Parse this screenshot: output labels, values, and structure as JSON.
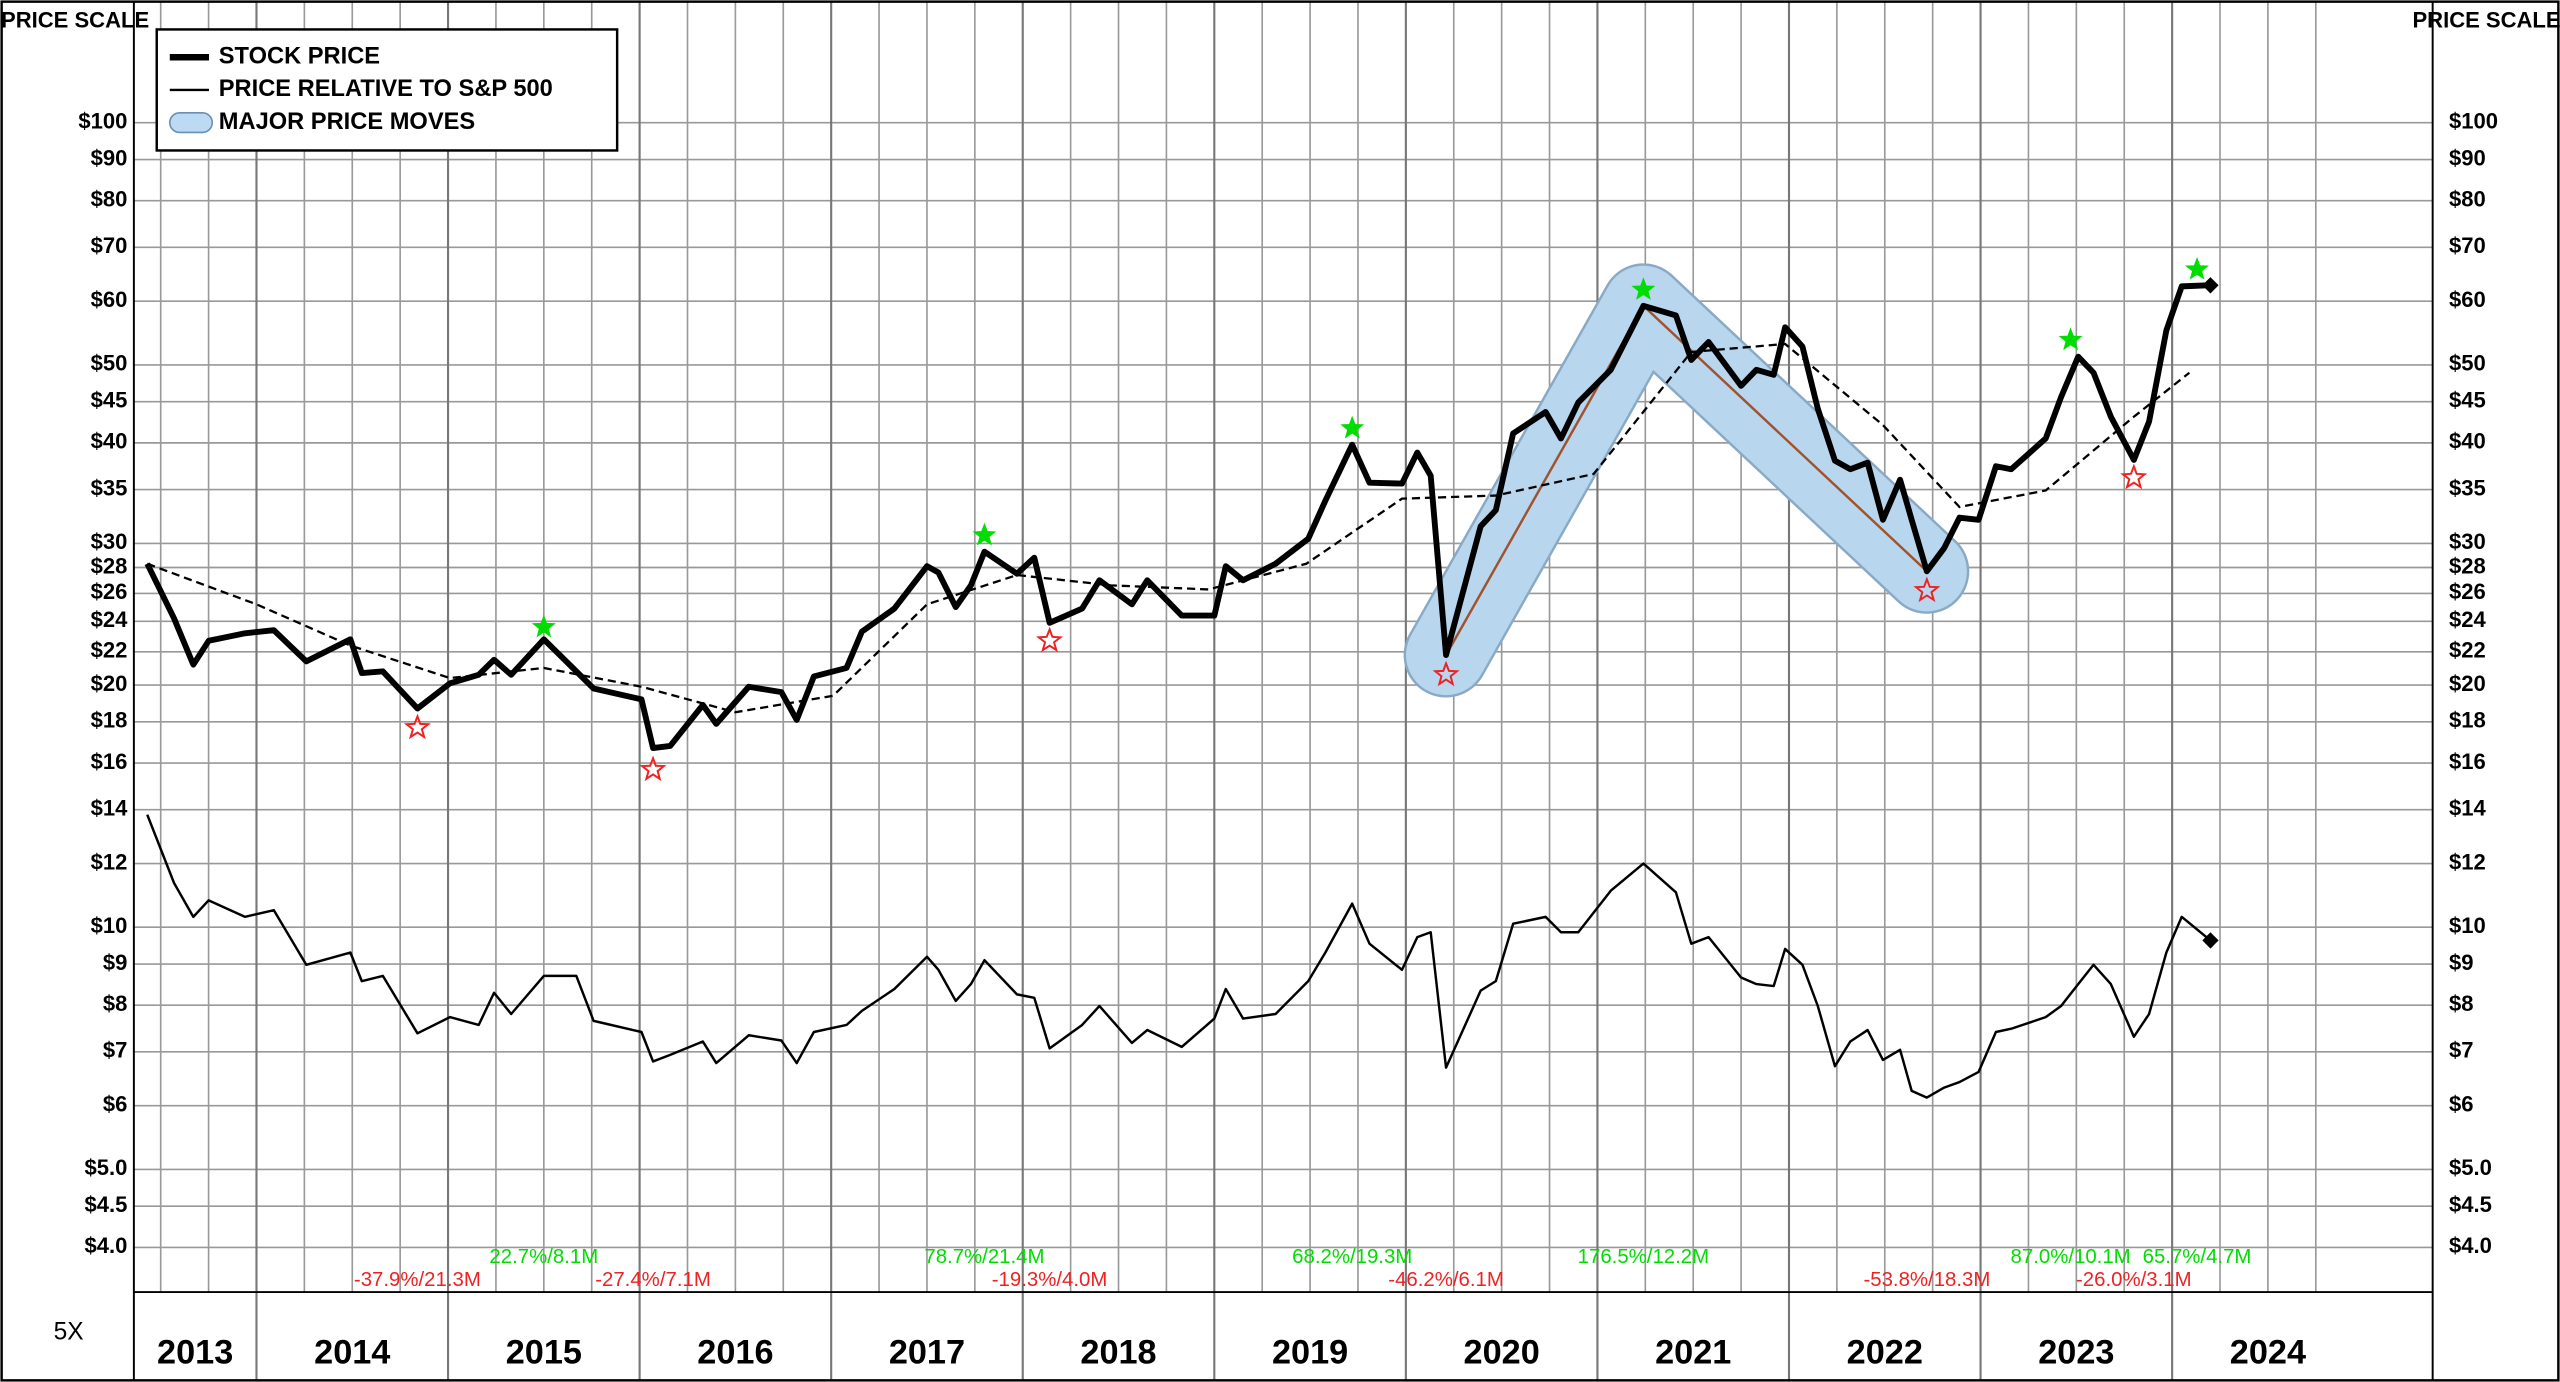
{
  "chart_data": {
    "type": "line",
    "axis_title": "PRICE SCALE",
    "multiplier_label": "5X",
    "log_scale": true,
    "grid": true,
    "legend_position": "upper left",
    "ylim": [
      3.52,
      138.8
    ],
    "yticks": [
      {
        "value": 100,
        "label": "$100"
      },
      {
        "value": 90,
        "label": "$90"
      },
      {
        "value": 80,
        "label": "$80"
      },
      {
        "value": 70,
        "label": "$70"
      },
      {
        "value": 60,
        "label": "$60"
      },
      {
        "value": 50,
        "label": "$50"
      },
      {
        "value": 45,
        "label": "$45"
      },
      {
        "value": 40,
        "label": "$40"
      },
      {
        "value": 35,
        "label": "$35"
      },
      {
        "value": 30,
        "label": "$30"
      },
      {
        "value": 28,
        "label": "$28"
      },
      {
        "value": 26,
        "label": "$26"
      },
      {
        "value": 24,
        "label": "$24"
      },
      {
        "value": 22,
        "label": "$22"
      },
      {
        "value": 20,
        "label": "$20"
      },
      {
        "value": 18,
        "label": "$18"
      },
      {
        "value": 16,
        "label": "$16"
      },
      {
        "value": 14,
        "label": "$14"
      },
      {
        "value": 12,
        "label": "$12"
      },
      {
        "value": 10,
        "label": "$10"
      },
      {
        "value": 9,
        "label": "$9"
      },
      {
        "value": 8,
        "label": "$8"
      },
      {
        "value": 7,
        "label": "$7"
      },
      {
        "value": 6,
        "label": "$6"
      },
      {
        "value": 5,
        "label": "$5.0"
      },
      {
        "value": 4.5,
        "label": "$4.5"
      },
      {
        "value": 4,
        "label": "$4.0"
      }
    ],
    "xlim": [
      2013.36,
      2025.36
    ],
    "xticks": [
      2013,
      2014,
      2015,
      2016,
      2017,
      2018,
      2019,
      2020,
      2021,
      2022,
      2023,
      2024
    ],
    "series": [
      {
        "name": "STOCK PRICE",
        "color": "#000000",
        "x": [
          2013.43,
          2013.57,
          2013.67,
          2013.75,
          2013.94,
          2014.09,
          2014.26,
          2014.49,
          2014.55,
          2014.66,
          2014.84,
          2015.01,
          2015.16,
          2015.24,
          2015.33,
          2015.5,
          2015.67,
          2015.76,
          2016.01,
          2016.07,
          2016.16,
          2016.33,
          2016.4,
          2016.57,
          2016.74,
          2016.82,
          2016.91,
          2017.08,
          2017.16,
          2017.33,
          2017.5,
          2017.56,
          2017.65,
          2017.73,
          2017.8,
          2017.97,
          2018.06,
          2018.14,
          2018.31,
          2018.4,
          2018.57,
          2018.65,
          2018.83,
          2019.0,
          2019.06,
          2019.15,
          2019.32,
          2019.49,
          2019.58,
          2019.72,
          2019.81,
          2019.98,
          2020.06,
          2020.13,
          2020.21,
          2020.39,
          2020.47,
          2020.56,
          2020.73,
          2020.81,
          2020.9,
          2021.07,
          2021.24,
          2021.41,
          2021.49,
          2021.58,
          2021.75,
          2021.83,
          2021.92,
          2021.98,
          2022.07,
          2022.15,
          2022.24,
          2022.32,
          2022.41,
          2022.49,
          2022.58,
          2022.64,
          2022.72,
          2022.81,
          2022.89,
          2022.99,
          2023.08,
          2023.16,
          2023.34,
          2023.42,
          2023.51,
          2023.59,
          2023.68,
          2023.8,
          2023.88,
          2023.97,
          2024.05,
          2024.2
        ],
        "values": [
          28.3,
          24.2,
          21.2,
          22.7,
          23.2,
          23.4,
          21.4,
          22.8,
          20.7,
          20.8,
          18.7,
          20.1,
          20.6,
          21.5,
          20.6,
          22.8,
          20.8,
          19.8,
          19.2,
          16.7,
          16.8,
          18.9,
          17.9,
          19.9,
          19.6,
          18.1,
          20.5,
          21.0,
          23.3,
          24.9,
          28.1,
          27.6,
          25.0,
          26.6,
          29.3,
          27.5,
          28.8,
          23.9,
          24.9,
          27.0,
          25.2,
          27.0,
          24.4,
          24.4,
          28.1,
          27.0,
          28.3,
          30.4,
          33.9,
          39.8,
          35.7,
          35.6,
          38.9,
          36.4,
          21.8,
          31.5,
          33.0,
          41.1,
          43.7,
          40.5,
          44.9,
          49.3,
          59.2,
          57.6,
          50.7,
          53.4,
          47.1,
          49.3,
          48.6,
          55.7,
          52.7,
          44.1,
          38.0,
          37.1,
          37.8,
          32.1,
          36.0,
          32.1,
          27.7,
          29.6,
          32.3,
          32.1,
          37.4,
          37.1,
          40.5,
          45.6,
          51.2,
          48.9,
          43.1,
          38.1,
          42.5,
          55.2,
          62.6,
          62.8
        ]
      },
      {
        "name": "PRICE RELATIVE TO S&P 500",
        "color": "#000000",
        "x": [
          2013.43,
          2013.57,
          2013.67,
          2013.75,
          2013.94,
          2014.09,
          2014.26,
          2014.49,
          2014.55,
          2014.66,
          2014.84,
          2015.01,
          2015.16,
          2015.24,
          2015.33,
          2015.5,
          2015.67,
          2015.76,
          2016.01,
          2016.07,
          2016.16,
          2016.33,
          2016.4,
          2016.57,
          2016.74,
          2016.82,
          2016.91,
          2017.08,
          2017.16,
          2017.33,
          2017.5,
          2017.56,
          2017.65,
          2017.73,
          2017.8,
          2017.97,
          2018.06,
          2018.14,
          2018.31,
          2018.4,
          2018.57,
          2018.65,
          2018.83,
          2019.0,
          2019.06,
          2019.15,
          2019.32,
          2019.49,
          2019.58,
          2019.72,
          2019.81,
          2019.98,
          2020.06,
          2020.13,
          2020.21,
          2020.39,
          2020.47,
          2020.56,
          2020.73,
          2020.81,
          2020.9,
          2021.07,
          2021.24,
          2021.41,
          2021.49,
          2021.58,
          2021.75,
          2021.83,
          2021.92,
          2021.98,
          2022.07,
          2022.15,
          2022.24,
          2022.32,
          2022.41,
          2022.49,
          2022.58,
          2022.64,
          2022.72,
          2022.81,
          2022.89,
          2022.99,
          2023.08,
          2023.16,
          2023.34,
          2023.42,
          2023.51,
          2023.59,
          2023.68,
          2023.8,
          2023.88,
          2023.97,
          2024.05,
          2024.2
        ],
        "values": [
          13.8,
          11.35,
          10.3,
          10.8,
          10.3,
          10.5,
          8.98,
          9.3,
          8.57,
          8.7,
          7.38,
          7.73,
          7.56,
          8.29,
          7.8,
          8.7,
          8.7,
          7.65,
          7.41,
          6.81,
          6.94,
          7.21,
          6.78,
          7.34,
          7.23,
          6.78,
          7.41,
          7.56,
          7.87,
          8.38,
          9.19,
          8.85,
          8.1,
          8.5,
          9.1,
          8.25,
          8.17,
          7.07,
          7.56,
          7.98,
          7.18,
          7.45,
          7.1,
          7.7,
          8.38,
          7.7,
          7.8,
          8.57,
          9.3,
          10.7,
          9.54,
          8.85,
          9.72,
          9.86,
          6.69,
          8.34,
          8.57,
          10.1,
          10.3,
          9.86,
          9.86,
          11.1,
          12.0,
          11.05,
          9.54,
          9.72,
          8.66,
          8.5,
          8.45,
          9.4,
          8.98,
          7.98,
          6.72,
          7.21,
          7.45,
          6.84,
          7.04,
          6.26,
          6.14,
          6.32,
          6.42,
          6.61,
          7.41,
          7.48,
          7.73,
          7.98,
          8.5,
          8.98,
          8.5,
          7.31,
          7.8,
          9.3,
          10.3,
          9.63
        ]
      }
    ],
    "moving_average": {
      "x": [
        2013.43,
        2014.0,
        2014.49,
        2015.01,
        2015.5,
        2016.01,
        2016.5,
        2017.01,
        2017.5,
        2017.97,
        2018.46,
        2018.97,
        2019.48,
        2019.98,
        2020.47,
        2020.98,
        2021.49,
        2021.98,
        2022.49,
        2022.89,
        2023.34,
        2023.8,
        2024.09
      ],
      "values": [
        28.3,
        25.2,
        22.4,
        20.4,
        21.0,
        19.9,
        18.5,
        19.4,
        25.2,
        27.4,
        26.6,
        26.3,
        28.3,
        34.1,
        34.4,
        36.6,
        51.9,
        53.1,
        42.1,
        33.3,
        34.9,
        43.1,
        48.9
      ]
    },
    "major_moves": {
      "name": "MAJOR PRICE MOVES",
      "color": "#bcdaf3",
      "x": [
        2020.21,
        2021.24,
        2022.72
      ],
      "values": [
        21.8,
        59.2,
        27.7
      ]
    },
    "highs": [
      {
        "x": 2015.5,
        "value": 23.6,
        "label": "22.7%/8.1M"
      },
      {
        "x": 2017.8,
        "value": 30.7,
        "label": "78.7%/21.4M"
      },
      {
        "x": 2019.72,
        "value": 41.7,
        "label": "68.2%/19.3M"
      },
      {
        "x": 2021.24,
        "value": 62.0,
        "label": "176.5%/12.2M"
      },
      {
        "x": 2023.47,
        "value": 53.7,
        "label": "87.0%/10.1M"
      },
      {
        "x": 2024.13,
        "value": 65.7,
        "label": "65.7%/4.7M"
      }
    ],
    "lows": [
      {
        "x": 2014.84,
        "value": 17.7,
        "label": "-37.9%/21.3M"
      },
      {
        "x": 2016.07,
        "value": 15.7,
        "label": "-27.4%/7.1M"
      },
      {
        "x": 2018.14,
        "value": 22.7,
        "label": "-19.3%/4.0M"
      },
      {
        "x": 2020.21,
        "value": 20.6,
        "label": "-46.2%/6.1M"
      },
      {
        "x": 2022.72,
        "value": 26.2,
        "label": "-53.8%/18.3M"
      },
      {
        "x": 2023.8,
        "value": 36.2,
        "label": "-26.0%/3.1M"
      }
    ],
    "high_color": "#00dd00",
    "low_color": "#ee2222"
  }
}
